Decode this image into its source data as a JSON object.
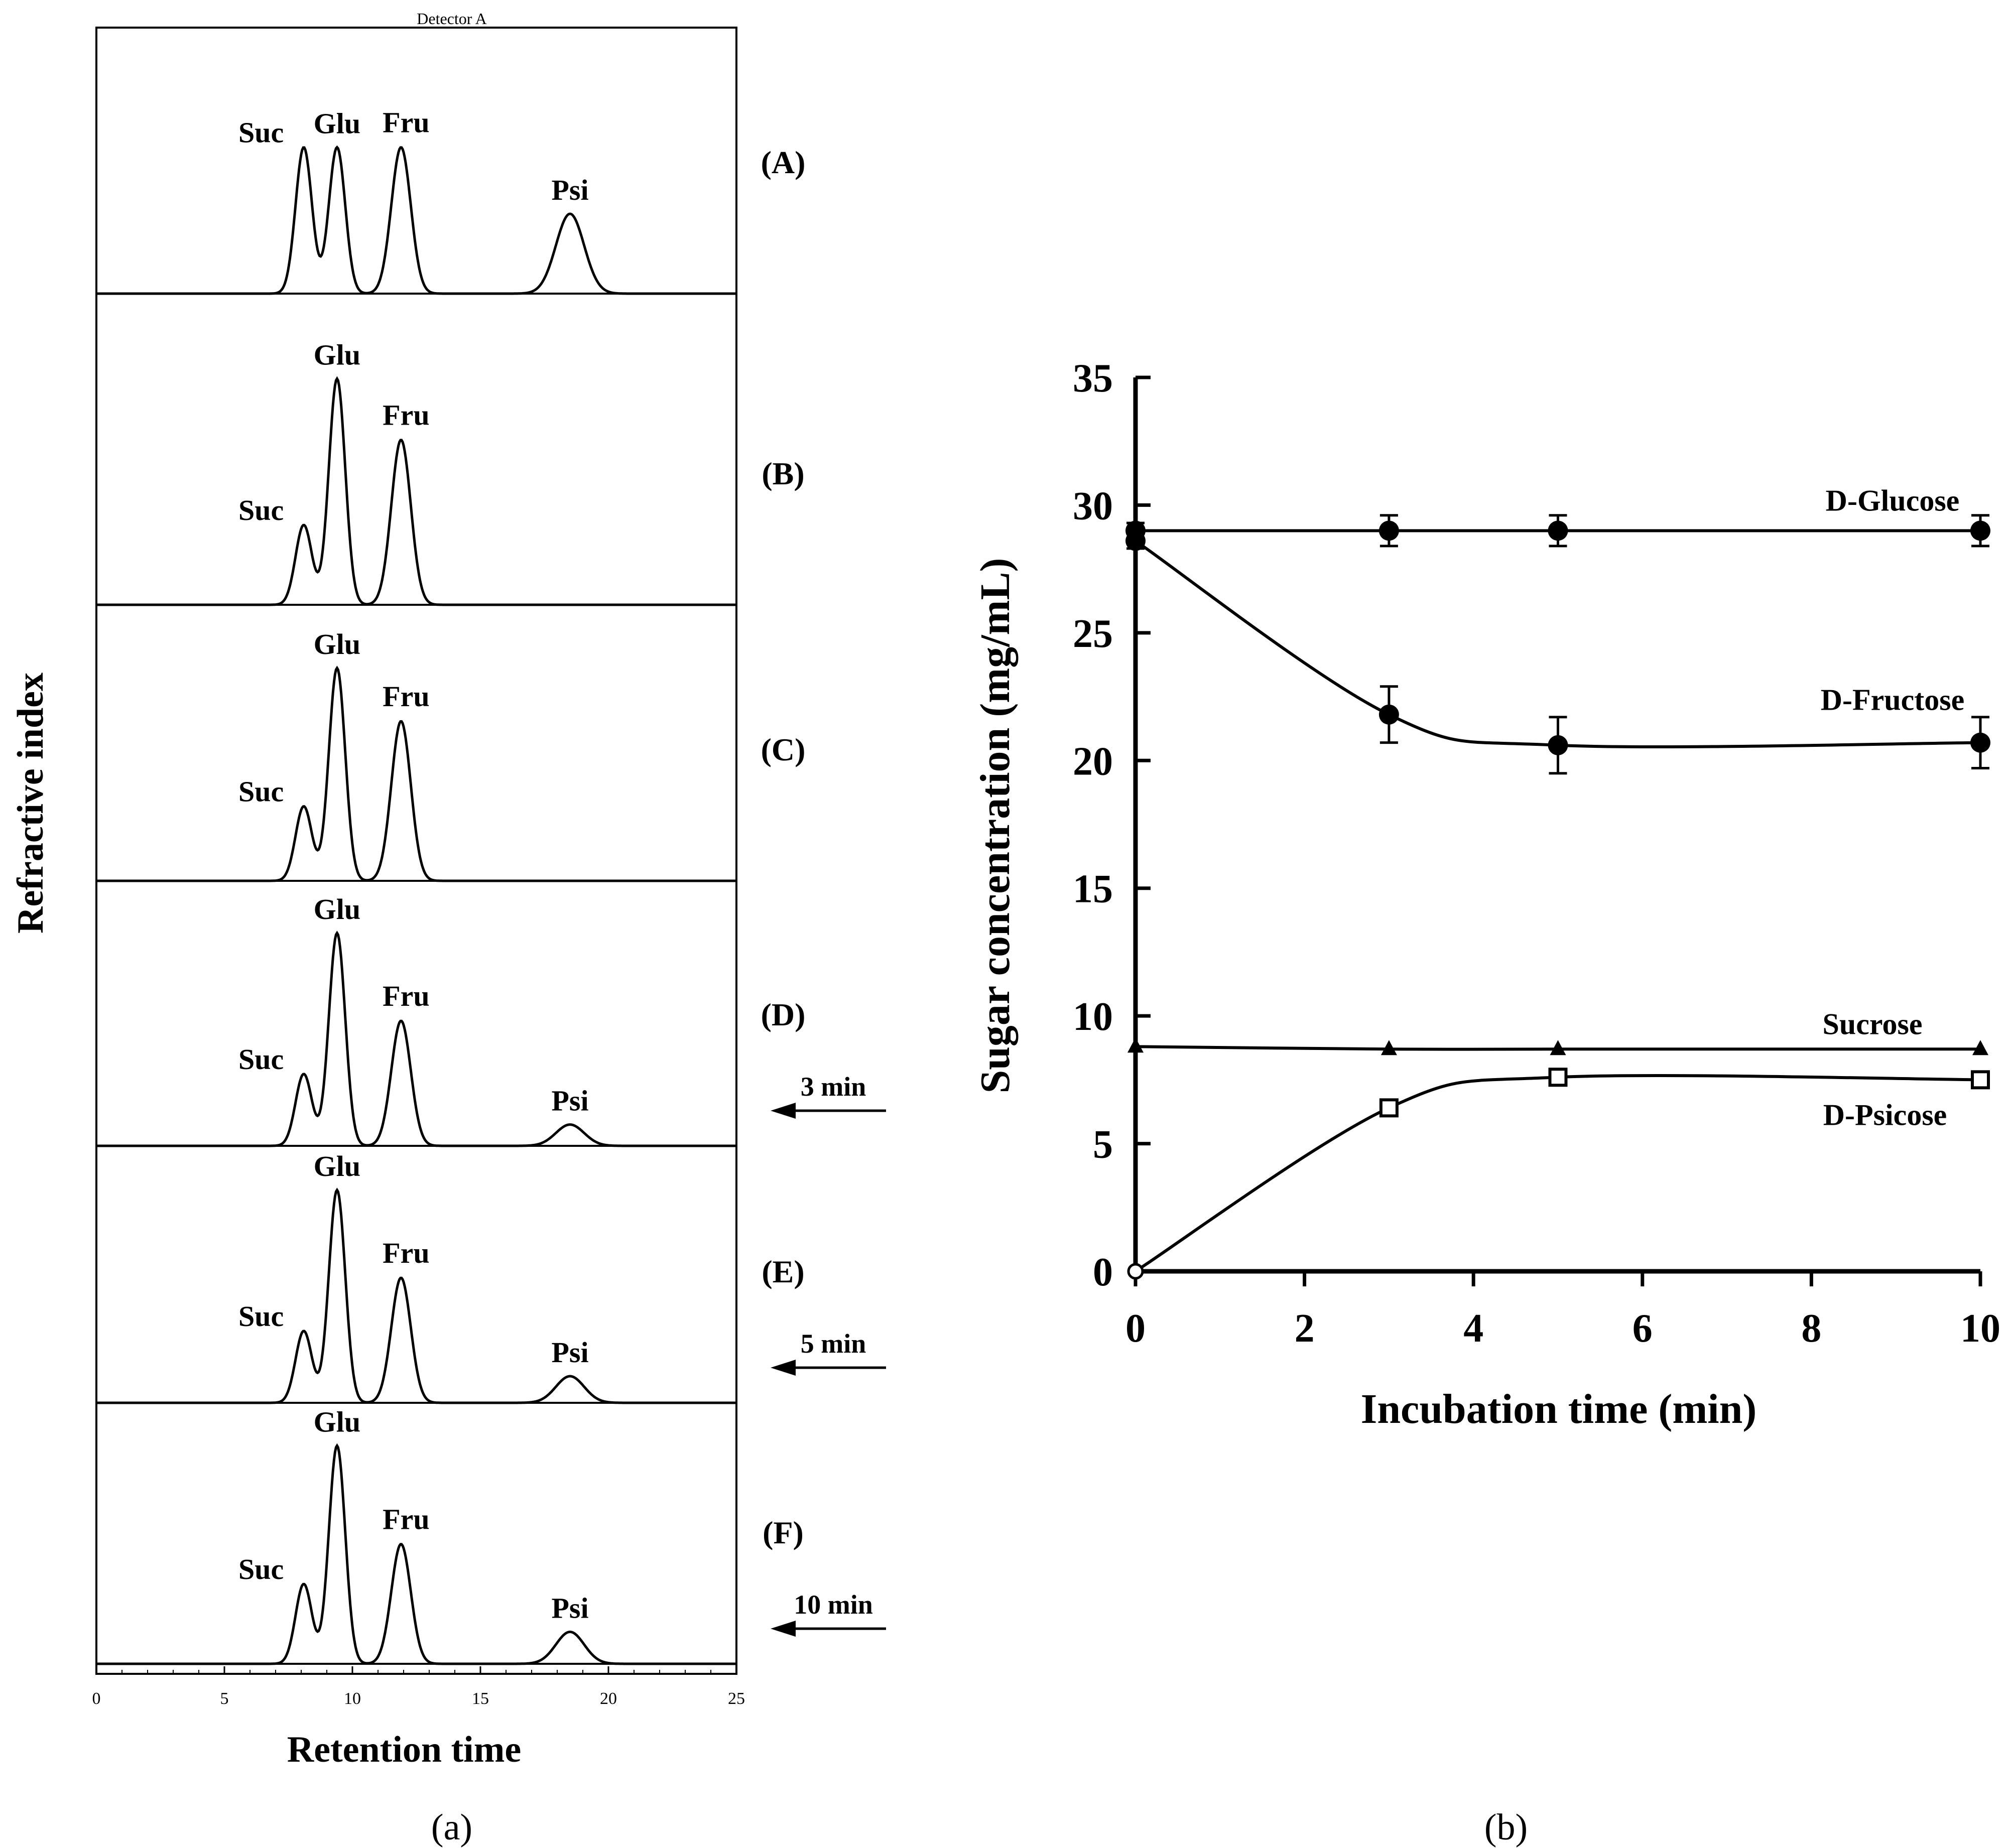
{
  "chart_data": [
    {
      "type": "line",
      "panel_label": "(a)",
      "top_label": "Detector A",
      "xlabel": "Retention time",
      "ylabel": "Refractive index",
      "xlim": [
        0,
        25
      ],
      "xticks": [
        "0",
        "5",
        "10",
        "15",
        "20",
        "25"
      ],
      "peak_names": [
        "Suc",
        "Glu",
        "Fru",
        "Psi"
      ],
      "peak_retention_times": [
        8.1,
        9.4,
        11.9,
        18.5
      ],
      "traces": [
        {
          "label": "(A)",
          "time_note": "",
          "peak_heights": [
            0.55,
            0.55,
            0.55,
            0.3
          ]
        },
        {
          "label": "(B)",
          "time_note": "",
          "peak_heights": [
            0.3,
            0.85,
            0.62,
            0
          ]
        },
        {
          "label": "(C)",
          "time_note": "",
          "peak_heights": [
            0.28,
            0.8,
            0.6,
            0
          ]
        },
        {
          "label": "(D)",
          "time_note": "3 min",
          "peak_heights": [
            0.27,
            0.8,
            0.47,
            0.08
          ]
        },
        {
          "label": "(E)",
          "time_note": "5 min",
          "peak_heights": [
            0.27,
            0.8,
            0.47,
            0.1
          ]
        },
        {
          "label": "(F)",
          "time_note": "10 min",
          "peak_heights": [
            0.3,
            0.82,
            0.45,
            0.12
          ]
        }
      ]
    },
    {
      "type": "line",
      "panel_label": "(b)",
      "xlabel": "Incubation  time (min)",
      "ylabel": "Sugar concentration  (mg/mL)",
      "xlim": [
        0,
        10
      ],
      "ylim": [
        0,
        35
      ],
      "xticks": [
        "0",
        "2",
        "4",
        "6",
        "8",
        "10"
      ],
      "yticks": [
        "0",
        "5",
        "10",
        "15",
        "20",
        "25",
        "30",
        "35"
      ],
      "grid": false,
      "series": [
        {
          "name": "D-Glucose",
          "marker": "filled-circle",
          "x": [
            0,
            3,
            5,
            10
          ],
          "y": [
            29.0,
            29.0,
            29.0,
            29.0
          ],
          "err": [
            0.3,
            0.6,
            0.6,
            0.6
          ]
        },
        {
          "name": "D-Fructose",
          "marker": "filled-circle",
          "x": [
            0,
            3,
            5,
            10
          ],
          "y": [
            28.6,
            21.8,
            20.6,
            20.7
          ],
          "err": [
            0.3,
            1.1,
            1.1,
            1.0
          ]
        },
        {
          "name": "Sucrose",
          "marker": "filled-triangle",
          "x": [
            0,
            3,
            5,
            10
          ],
          "y": [
            8.8,
            8.7,
            8.7,
            8.7
          ],
          "err": [
            0,
            0,
            0,
            0
          ]
        },
        {
          "name": "D-Psicose",
          "marker": "open-square",
          "x": [
            0,
            3,
            5,
            10
          ],
          "y": [
            0,
            6.4,
            7.6,
            7.5
          ],
          "err": [
            0,
            0,
            0,
            0
          ]
        }
      ]
    }
  ]
}
